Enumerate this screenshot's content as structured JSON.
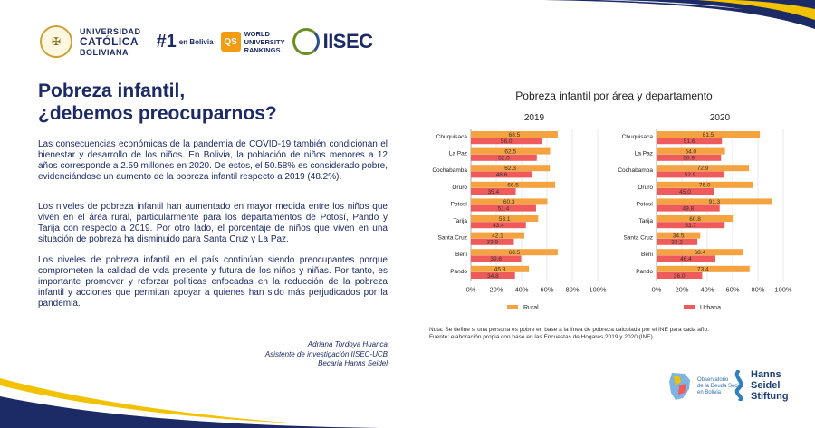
{
  "header": {
    "ucb_line1": "UNIVERSIDAD",
    "ucb_line2": "CATÓLICA",
    "ucb_line3": "BOLIVIANA",
    "rank_hash": "#1",
    "rank_text": "en Bolivia",
    "qs_box": "QS",
    "qs_line1": "WORLD",
    "qs_line2": "UNIVERSITY",
    "qs_line3": "RANKINGS",
    "iisec": "IISEC"
  },
  "article": {
    "title_line1": "Pobreza infantil,",
    "title_line2": "¿debemos preocuparnos?",
    "p1": "Las consecuencias económicas de la pandemia de COVID-19 también condicionan el bienestar y desarrollo de los niños. En Bolivia, la población de niños menores a 12 años corresponde a 2.59 millones en 2020. De estos, el 50.58% es considerado pobre, evidenciándose un aumento de la pobreza infantil respecto a 2019 (48.2%).",
    "p2": "Los niveles de pobreza infantil han aumentado en mayor medida entre los niños que viven en el área rural, particularmente para los departamentos de Potosí, Pando y Tarija con respecto a 2019. Por otro lado, el porcentaje de niños que viven en una situación de pobreza ha disminuido para Santa Cruz y La Paz.",
    "p3": "Los niveles de pobreza infantil en el país continúan siendo preocupantes porque comprometen la calidad de vida presente y futura de los niños y niñas. Por tanto, es importante promover y reforzar políticas enfocadas en la reducción de la pobreza infantil y acciones que permitan apoyar a quienes han sido más perjudicados por la pandemia.",
    "sig_name": "Adriana Tordoya Huanca",
    "sig_role": "Asistente de investigación IISEC-UCB",
    "sig_extra": "Becaria Hanns Seidel"
  },
  "chart_data": {
    "type": "bar",
    "title": "Pobreza infantil por área y departamento",
    "categories": [
      "Chuquisaca",
      "La Paz",
      "Cochabamba",
      "Oruro",
      "Potosí",
      "Tarija",
      "Santa Cruz",
      "Beni",
      "Pando"
    ],
    "xlim": [
      0,
      100
    ],
    "xticks": [
      "0%",
      "20%",
      "40%",
      "60%",
      "80%",
      "100%"
    ],
    "legend_position": "bottom",
    "panels": [
      {
        "title": "2019",
        "series": [
          {
            "name": "Rural",
            "color": "#f4a340",
            "values": [
              68.5,
              62.5,
              62.3,
              66.5,
              60.3,
              53.1,
              42.1,
              68.5,
              45.8
            ]
          },
          {
            "name": "Urbana",
            "color": "#ef5b5b",
            "values": [
              56.0,
              52.0,
              48.6,
              35.4,
              51.4,
              43.4,
              33.9,
              39.6,
              34.8
            ]
          }
        ]
      },
      {
        "title": "2020",
        "series": [
          {
            "name": "Rural",
            "color": "#f4a340",
            "values": [
              81.5,
              54.0,
              72.9,
              76.0,
              91.3,
              60.8,
              34.5,
              68.4,
              73.4
            ]
          },
          {
            "name": "Urbana",
            "color": "#ef5b5b",
            "values": [
              51.6,
              50.9,
              52.9,
              45.0,
              49.8,
              53.7,
              32.2,
              46.4,
              36.0
            ]
          }
        ]
      }
    ]
  },
  "notes": {
    "line1": "Nota: Se define si una persona es pobre en base a la línea de pobreza calculada por el INE para cada año.",
    "line2": "Fuente: elaboración propia con base en las Encuestas de Hogares 2019 y 2020 (INE)."
  },
  "footer": {
    "obs_line1": "Observatorio",
    "obs_line2": "de la Deuda Social",
    "obs_line3": "en Bolivia",
    "hss_line1": "Hanns",
    "hss_line2": "Seidel",
    "hss_line3": "Stiftung"
  },
  "colors": {
    "navy": "#1c2b66",
    "gold": "#f2c200",
    "rural": "#f4a340",
    "urbana": "#ef5b5b"
  }
}
